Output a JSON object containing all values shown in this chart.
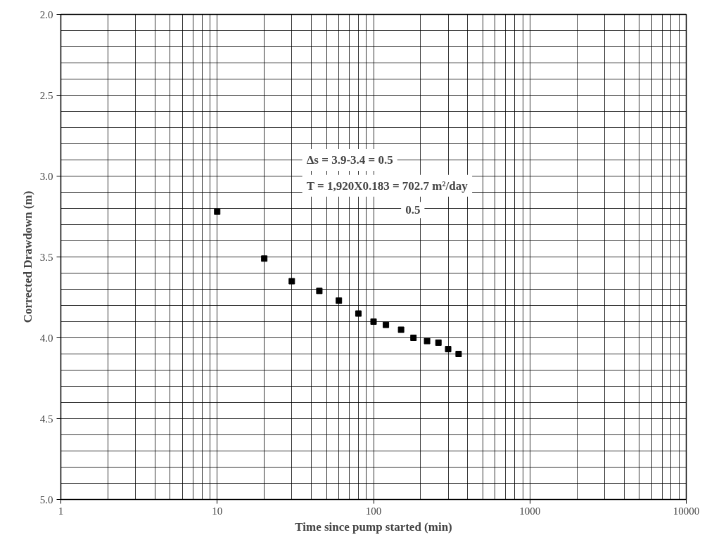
{
  "chart_data": {
    "type": "scatter",
    "xlabel": "Time since pump started (min)",
    "ylabel": "Corrected Drawdown (m)",
    "x": [
      10,
      20,
      30,
      45,
      60,
      80,
      100,
      120,
      150,
      180,
      220,
      260,
      300,
      350
    ],
    "values": [
      3.22,
      3.51,
      3.65,
      3.71,
      3.77,
      3.85,
      3.9,
      3.92,
      3.95,
      4.0,
      4.02,
      4.03,
      4.07,
      4.1
    ],
    "color": "#000000",
    "marker": "square",
    "log": "x",
    "grid": true,
    "xlim": [
      1,
      10000
    ],
    "xticks": [
      1,
      10,
      100,
      1000,
      10000
    ],
    "ylim": [
      5.0,
      2.0
    ],
    "yticks": [
      {
        "value": 2.0,
        "label": "2.0"
      },
      {
        "value": 2.5,
        "label": "2.5"
      },
      {
        "value": 3.0,
        "label": "3.0"
      },
      {
        "value": 3.5,
        "label": "3.5"
      },
      {
        "value": 4.0,
        "label": "4.0"
      },
      {
        "value": 4.5,
        "label": "4.5"
      },
      {
        "value": 5.0,
        "label": "5.0"
      }
    ],
    "annotations": [
      "Δs = 3.9-3.4 = 0.5",
      "T = 1,920X0.183 = 702.7 m²/day",
      "0.5"
    ]
  }
}
